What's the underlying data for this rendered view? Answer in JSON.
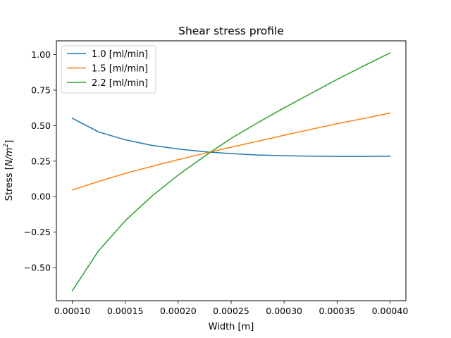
{
  "chart_data": {
    "type": "line",
    "title": "Shear stress profile",
    "xlabel": "Width [m]",
    "ylabel": "Stress [N/m²]",
    "ylabel_parts": {
      "prefix": "Stress [",
      "unit_base": "N/m",
      "unit_exp": "2",
      "suffix": "]"
    },
    "xlim": [
      8.5e-05,
      0.000415
    ],
    "ylim": [
      -0.733,
      1.097
    ],
    "xticks": [
      0.0001,
      0.00015,
      0.0002,
      0.00025,
      0.0003,
      0.00035,
      0.0004
    ],
    "xtick_labels": [
      "0.00010",
      "0.00015",
      "0.00020",
      "0.00025",
      "0.00030",
      "0.00035",
      "0.00040"
    ],
    "yticks": [
      -0.5,
      -0.25,
      0.0,
      0.25,
      0.5,
      0.75,
      1.0
    ],
    "ytick_labels": [
      "−0.50",
      "−0.25",
      "0.00",
      "0.25",
      "0.50",
      "0.75",
      "1.00"
    ],
    "grid": false,
    "legend_position": "top-left",
    "x": [
      0.0001,
      0.000125,
      0.00015,
      0.000175,
      0.0002,
      0.000225,
      0.00025,
      0.000275,
      0.0003,
      0.000325,
      0.00035,
      0.000375,
      0.0004
    ],
    "series": [
      {
        "name": "1.0 [ml/min]",
        "color": "#1f77b4",
        "values": [
          0.552,
          0.455,
          0.4,
          0.361,
          0.335,
          0.316,
          0.303,
          0.293,
          0.288,
          0.285,
          0.283,
          0.283,
          0.284
        ]
      },
      {
        "name": "1.5 [ml/min]",
        "color": "#ff7f0e",
        "values": [
          0.047,
          0.107,
          0.163,
          0.213,
          0.26,
          0.305,
          0.348,
          0.39,
          0.432,
          0.473,
          0.513,
          0.55,
          0.588
        ]
      },
      {
        "name": "2.2 [ml/min]",
        "color": "#2ca02c",
        "values": [
          -0.663,
          -0.38,
          -0.17,
          0.002,
          0.152,
          0.285,
          0.41,
          0.52,
          0.625,
          0.725,
          0.825,
          0.92,
          1.012
        ]
      }
    ]
  }
}
